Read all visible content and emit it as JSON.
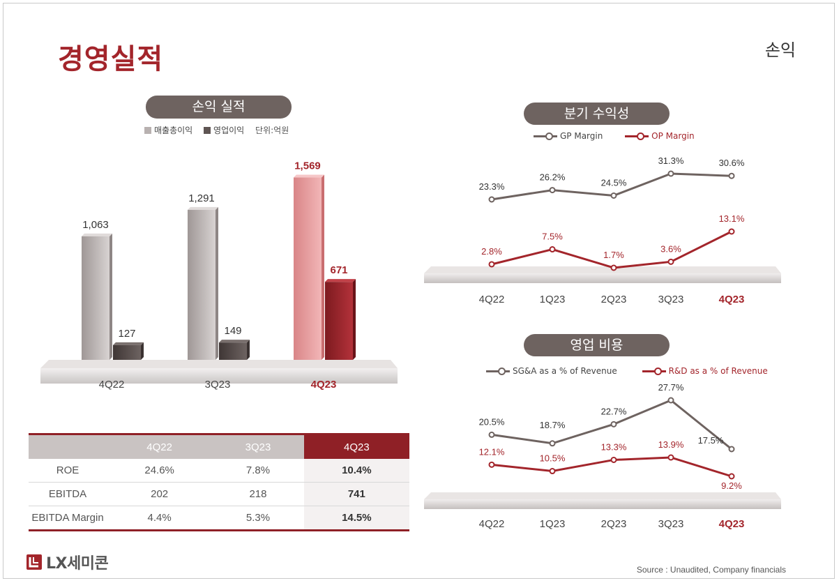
{
  "page": {
    "title": "경영실적",
    "section": "손익",
    "source": "Source : Unaudited, Company financials"
  },
  "brand": {
    "logo_text": "LX세미콘",
    "accent": "#a3252b"
  },
  "colors": {
    "gross_profit": "#c2bcbb",
    "op_profit": "#5f5553",
    "highlight_gp": "#e79d9f",
    "highlight_op": "#a3252b",
    "line_gray": "#6e6360",
    "line_red": "#a3252b"
  },
  "chart_data": [
    {
      "type": "bar",
      "title": "손익 실적",
      "unit_label": "단위:억원",
      "categories": [
        "4Q22",
        "3Q23",
        "4Q23"
      ],
      "highlight_category": "4Q23",
      "series": [
        {
          "name": "매출총이익",
          "values": [
            1063,
            1291,
            1569
          ],
          "labels": [
            "1,063",
            "1,291",
            "1,569"
          ]
        },
        {
          "name": "영업이익",
          "values": [
            127,
            149,
            671
          ],
          "labels": [
            "127",
            "149",
            "671"
          ]
        }
      ],
      "ylim": [
        0,
        1700
      ],
      "legend": "top"
    },
    {
      "type": "line",
      "title": "분기 수익성",
      "categories": [
        "4Q22",
        "1Q23",
        "2Q23",
        "3Q23",
        "4Q23"
      ],
      "highlight_category": "4Q23",
      "series": [
        {
          "name": "GP Margin",
          "values": [
            23.3,
            26.2,
            24.5,
            31.3,
            30.6
          ],
          "labels": [
            "23.3%",
            "26.2%",
            "24.5%",
            "31.3%",
            "30.6%"
          ]
        },
        {
          "name": "OP Margin",
          "values": [
            2.8,
            7.5,
            1.7,
            3.6,
            13.1
          ],
          "labels": [
            "2.8%",
            "7.5%",
            "1.7%",
            "3.6%",
            "13.1%"
          ]
        }
      ],
      "legend": "top"
    },
    {
      "type": "line",
      "title": "영업 비용",
      "categories": [
        "4Q22",
        "1Q23",
        "2Q23",
        "3Q23",
        "4Q23"
      ],
      "highlight_category": "4Q23",
      "series": [
        {
          "name": "SG&A as a % of Revenue",
          "values": [
            20.5,
            18.7,
            22.7,
            27.7,
            17.5
          ],
          "labels": [
            "20.5%",
            "18.7%",
            "22.7%",
            "27.7%",
            "17.5%"
          ]
        },
        {
          "name": "R&D as a % of Revenue",
          "values": [
            12.1,
            10.5,
            13.3,
            13.9,
            9.2
          ],
          "labels": [
            "12.1%",
            "10.5%",
            "13.3%",
            "13.9%",
            "9.2%"
          ]
        }
      ],
      "legend": "top"
    }
  ],
  "kpi_table": {
    "columns": [
      "",
      "4Q22",
      "3Q23",
      "4Q23"
    ],
    "rows": [
      {
        "label": "ROE",
        "values": [
          "24.6%",
          "7.8%",
          "10.4%"
        ]
      },
      {
        "label": "EBITDA",
        "values": [
          "202",
          "218",
          "741"
        ]
      },
      {
        "label": "EBITDA Margin",
        "values": [
          "4.4%",
          "5.3%",
          "14.5%"
        ]
      }
    ]
  }
}
